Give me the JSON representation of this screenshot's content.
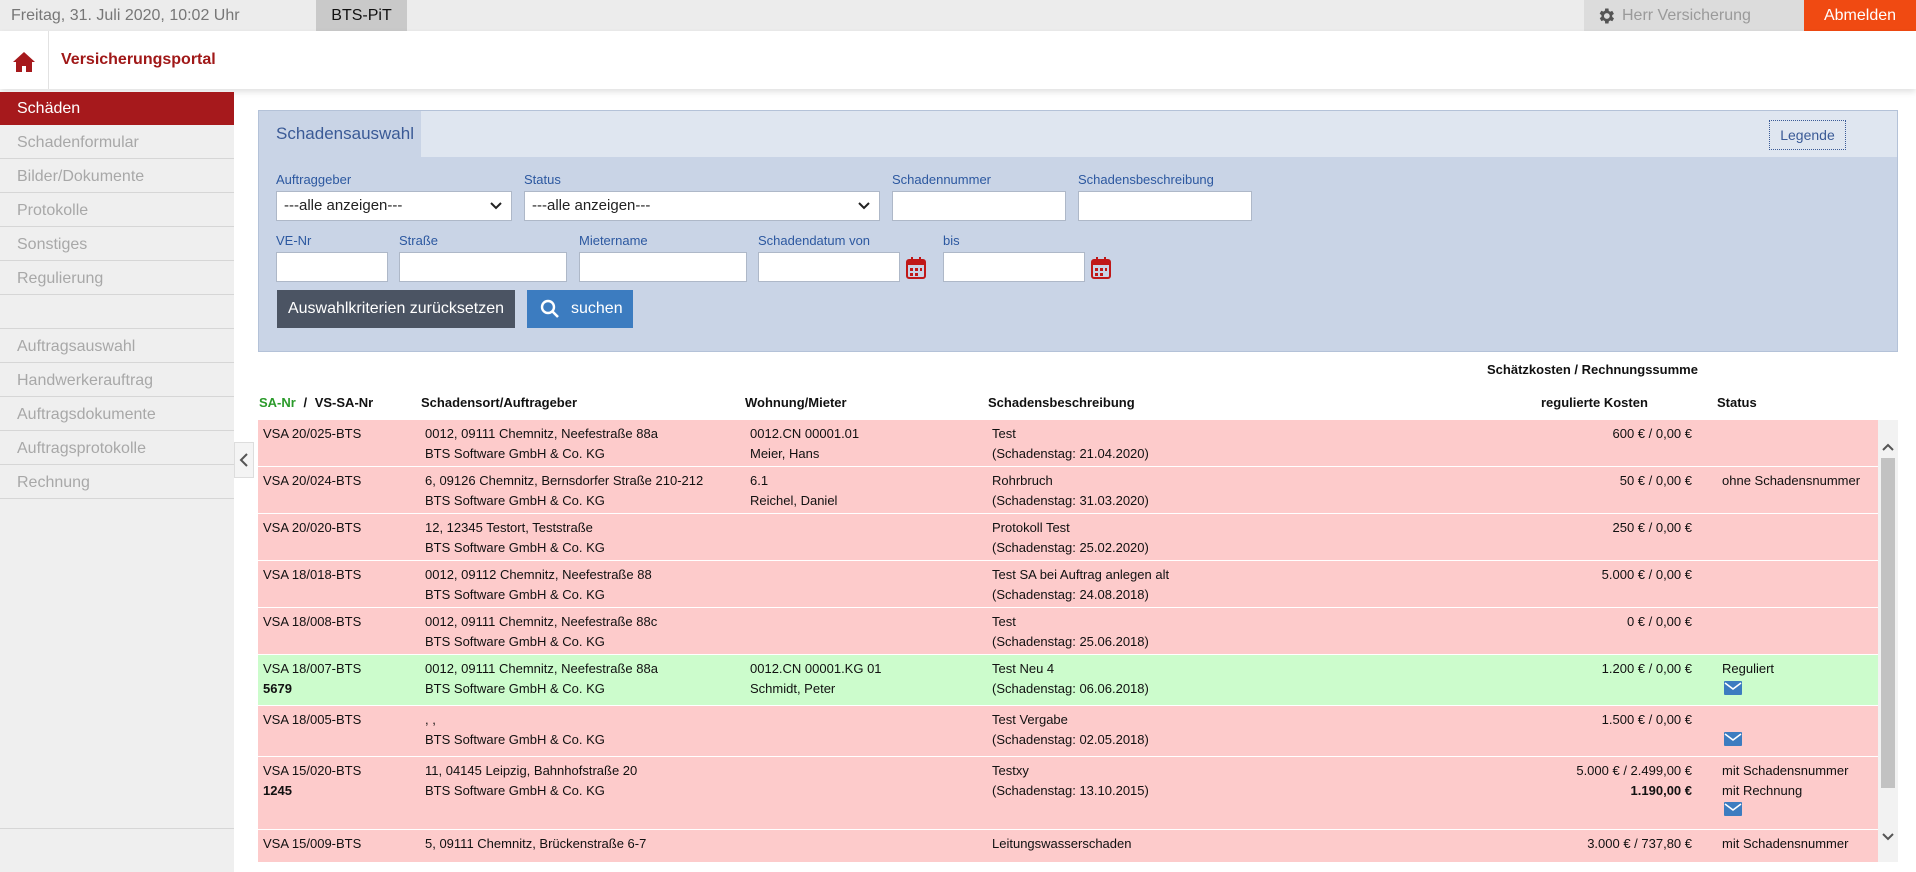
{
  "topbar": {
    "date": "Freitag, 31. Juli 2020, 10:02 Uhr",
    "app": "BTS-PiT",
    "user": "Herr Versicherung",
    "logout": "Abmelden"
  },
  "header": {
    "portal": "Versicherungsportal"
  },
  "sidebar": {
    "items": [
      {
        "label": "Schäden",
        "active": true
      },
      {
        "label": "Schadenformular"
      },
      {
        "label": "Bilder/Dokumente"
      },
      {
        "label": "Protokolle"
      },
      {
        "label": "Sonstiges"
      },
      {
        "label": "Regulierung"
      },
      {
        "label": ""
      },
      {
        "label": "Auftragsauswahl"
      },
      {
        "label": "Handwerkerauftrag"
      },
      {
        "label": "Auftragsdokumente"
      },
      {
        "label": "Auftragsprotokolle"
      },
      {
        "label": "Rechnung"
      }
    ]
  },
  "panel": {
    "tab": "Schadensauswahl",
    "legende": "Legende",
    "labels": {
      "auftraggeber": "Auftraggeber",
      "status": "Status",
      "schadennummer": "Schadennummer",
      "schadensbeschreibung": "Schadensbeschreibung",
      "ve_nr": "VE-Nr",
      "strasse": "Straße",
      "mietername": "Mietername",
      "schadendatum_von": "Schadendatum von",
      "bis": "bis"
    },
    "auftraggeber_value": "---alle anzeigen---",
    "status_value": "---alle anzeigen---",
    "reset": "Auswahlkriterien zurücksetzen",
    "search": "suchen"
  },
  "table": {
    "headers": {
      "sa_nr": "SA-Nr",
      "slash": "/",
      "vs_sa_nr": "VS-SA-Nr",
      "ort": "Schadensort/Auftrageber",
      "wohnung": "Wohnung/Mieter",
      "beschreibung": "Schadensbeschreibung",
      "kosten_top": "Schätzkosten / Rechnungssumme",
      "kosten": "regulierte Kosten",
      "status": "Status"
    },
    "rows": [
      {
        "sa": "VSA 20/025-BTS",
        "vs": "",
        "ort1": "0012, 09111 Chemnitz, Neefestraße 88a",
        "ort2": "BTS Software GmbH & Co. KG",
        "w1": "0012.CN 00001.01",
        "w2": "Meier, Hans",
        "b1": "Test",
        "b2": "(Schadenstag: 21.04.2020)",
        "k1": "600 € / 0,00 €",
        "k2": "",
        "s1": "",
        "s2": ""
      },
      {
        "sa": "VSA 20/024-BTS",
        "vs": "",
        "ort1": "6, 09126 Chemnitz, Bernsdorfer Straße 210-212",
        "ort2": "BTS Software GmbH & Co. KG",
        "w1": "6.1",
        "w2": "Reichel, Daniel",
        "b1": "Rohrbruch",
        "b2": "(Schadenstag: 31.03.2020)",
        "k1": "50 € / 0,00 €",
        "k2": "",
        "s1": "ohne Schadensnummer",
        "s2": ""
      },
      {
        "sa": "VSA 20/020-BTS",
        "vs": "",
        "ort1": "12, 12345 Testort, Teststraße",
        "ort2": "BTS Software GmbH & Co. KG",
        "w1": "",
        "w2": "",
        "b1": "Protokoll Test",
        "b2": "(Schadenstag: 25.02.2020)",
        "k1": "250 € / 0,00 €",
        "k2": "",
        "s1": "",
        "s2": ""
      },
      {
        "sa": "VSA 18/018-BTS",
        "vs": "",
        "ort1": "0012, 09112 Chemnitz, Neefestraße 88",
        "ort2": "BTS Software GmbH & Co. KG",
        "w1": "",
        "w2": "",
        "b1": "Test SA bei Auftrag anlegen alt",
        "b2": "(Schadenstag: 24.08.2018)",
        "k1": "5.000 € / 0,00 €",
        "k2": "",
        "s1": "",
        "s2": ""
      },
      {
        "sa": "VSA 18/008-BTS",
        "vs": "",
        "ort1": "0012, 09111 Chemnitz, Neefestraße 88c",
        "ort2": "BTS Software GmbH & Co. KG",
        "w1": "",
        "w2": "",
        "b1": "Test",
        "b2": "(Schadenstag: 25.06.2018)",
        "k1": "0 € / 0,00 €",
        "k2": "",
        "s1": "",
        "s2": ""
      },
      {
        "sa": "VSA 18/007-BTS",
        "vs": "5679",
        "ort1": "0012, 09111 Chemnitz, Neefestraße 88a",
        "ort2": "BTS Software GmbH & Co. KG",
        "w1": "0012.CN 00001.KG 01",
        "w2": "Schmidt, Peter",
        "b1": "Test Neu 4",
        "b2": "(Schadenstag: 06.06.2018)",
        "k1": "1.200 € / 0,00 €",
        "k2": "",
        "s1": "Reguliert",
        "s2": ""
      },
      {
        "sa": "VSA 18/005-BTS",
        "vs": "",
        "ort1": ", ,",
        "ort2": "BTS Software GmbH & Co. KG",
        "w1": "",
        "w2": "",
        "b1": "Test Vergabe",
        "b2": "(Schadenstag: 02.05.2018)",
        "k1": "1.500 € / 0,00 €",
        "k2": "",
        "s1": "",
        "s2": ""
      },
      {
        "sa": "VSA 15/020-BTS",
        "vs": "1245",
        "ort1": "11, 04145 Leipzig, Bahnhofstraße 20",
        "ort2": "BTS Software GmbH & Co. KG",
        "w1": "",
        "w2": "",
        "b1": "Testxy",
        "b2": "(Schadenstag: 13.10.2015)",
        "k1": "5.000 € / 2.499,00 €",
        "k2": "1.190,00 €",
        "s1": "mit Schadensnummer",
        "s2": "mit Rechnung"
      },
      {
        "sa": "VSA 15/009-BTS",
        "vs": "",
        "ort1": "5, 09111 Chemnitz, Brückenstraße 6-7",
        "ort2": "",
        "w1": "",
        "w2": "",
        "b1": "Leitungswasserschaden",
        "b2": "",
        "k1": "3.000 € / 737,80 €",
        "k2": "",
        "s1": "mit Schadensnummer",
        "s2": ""
      }
    ]
  },
  "colors": {
    "accent_red": "#a6191c",
    "logout": "#f04a12",
    "row_red": "#fdcbcb",
    "row_green": "#ccfccc",
    "panel": "#c9d4e6",
    "link_blue": "#2c58a0"
  },
  "icons": [
    "gear-icon",
    "home-icon",
    "chevron-down-icon",
    "calendar-icon",
    "search-icon",
    "mail-icon",
    "chevron-left-icon",
    "chevron-up-icon"
  ]
}
